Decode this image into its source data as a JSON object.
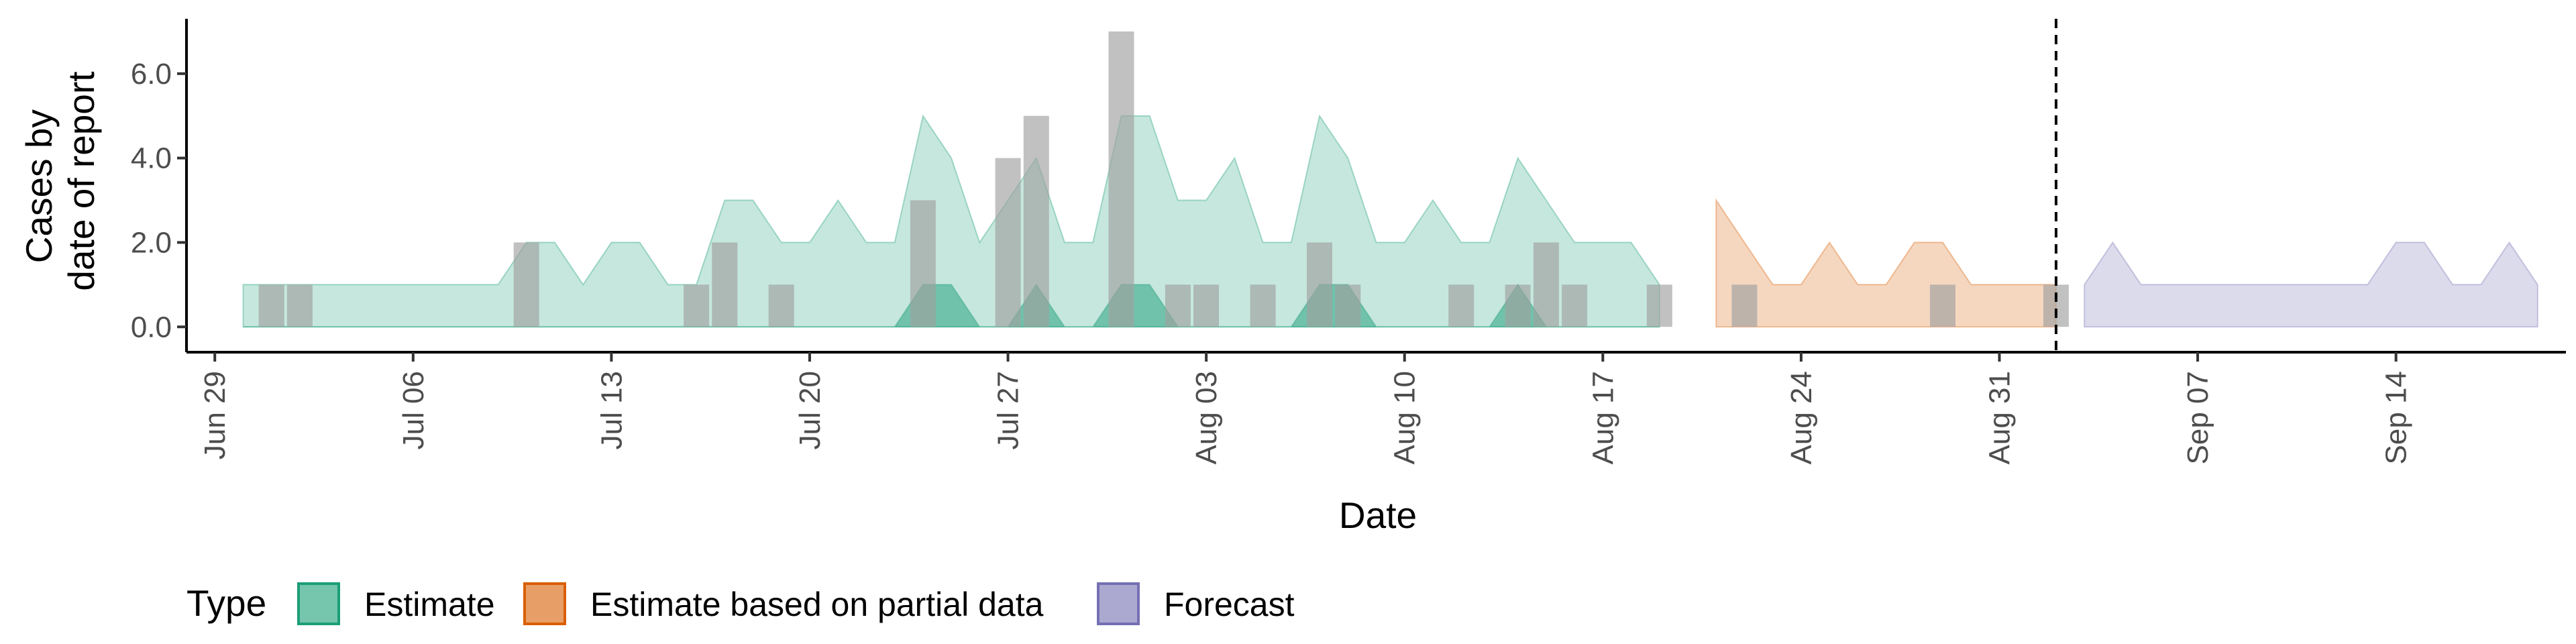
{
  "chart_data": {
    "type": "area",
    "xlabel": "Date",
    "ylabel_lines": [
      "Cases by",
      "date of report"
    ],
    "x_ticks": [
      "2020-06-29",
      "2020-07-06",
      "2020-07-13",
      "2020-07-20",
      "2020-07-27",
      "2020-08-03",
      "2020-08-10",
      "2020-08-17",
      "2020-08-24",
      "2020-08-31",
      "2020-09-07",
      "2020-09-14"
    ],
    "x_tick_labels": [
      "Jun 29",
      "Jul 06",
      "Jul 13",
      "Jul 20",
      "Jul 27",
      "Aug 03",
      "Aug 10",
      "Aug 17",
      "Aug 24",
      "Aug 31",
      "Sep 07",
      "Sep 14"
    ],
    "y_ticks": [
      0,
      2,
      4,
      6
    ],
    "y_tick_labels": [
      "0.0",
      "2.0",
      "4.0",
      "6.0"
    ],
    "xlim": [
      "2020-06-28",
      "2020-09-20"
    ],
    "ylim": [
      -0.6,
      7.3
    ],
    "vline_date": "2020-09-02",
    "legend": {
      "title": "Type",
      "position": "bottom",
      "items": [
        {
          "label": "Estimate",
          "fill": "#1b9e77",
          "stroke": "#1b9e77"
        },
        {
          "label": "Estimate based on partial data",
          "fill": "#d95f02",
          "stroke": "#d95f02"
        },
        {
          "label": "Forecast",
          "fill": "#7570b3",
          "stroke": "#7570b3"
        }
      ]
    },
    "bars": {
      "color": "#a0a0a0",
      "dates": [
        "2020-07-01",
        "2020-07-02",
        "2020-07-10",
        "2020-07-16",
        "2020-07-17",
        "2020-07-19",
        "2020-07-24",
        "2020-07-27",
        "2020-07-28",
        "2020-07-31",
        "2020-08-02",
        "2020-08-03",
        "2020-08-05",
        "2020-08-07",
        "2020-08-08",
        "2020-08-12",
        "2020-08-14",
        "2020-08-15",
        "2020-08-16",
        "2020-08-19",
        "2020-08-22",
        "2020-08-29",
        "2020-09-02"
      ],
      "values": [
        1,
        1,
        2,
        1,
        2,
        1,
        3,
        4,
        5,
        7,
        1,
        1,
        1,
        2,
        1,
        1,
        1,
        2,
        1,
        1,
        1,
        1,
        1
      ]
    },
    "series": [
      {
        "name": "Estimate",
        "color": "#1b9e77",
        "outer_upper": [
          1,
          1,
          1,
          1,
          1,
          1,
          1,
          1,
          1,
          1,
          2,
          2,
          1,
          2,
          2,
          1,
          1,
          3,
          3,
          2,
          2,
          3,
          2,
          2,
          5,
          4,
          2,
          3,
          4,
          2,
          2,
          5,
          5,
          3,
          3,
          4,
          2,
          2,
          5,
          4,
          2,
          2,
          3,
          2,
          2,
          4,
          3,
          2,
          2,
          2,
          1
        ],
        "inner_upper": [
          0,
          0,
          0,
          0,
          0,
          0,
          0,
          0,
          0,
          0,
          0,
          0,
          0,
          0,
          0,
          0,
          0,
          0,
          0,
          0,
          0,
          0,
          0,
          0,
          1,
          1,
          0,
          0,
          1,
          0,
          0,
          1,
          1,
          0,
          0,
          0,
          0,
          0,
          1,
          1,
          0,
          0,
          0,
          0,
          0,
          1,
          0,
          0,
          0,
          0,
          0
        ]
      },
      {
        "name": "Estimate based on partial data",
        "color": "#d95f02",
        "outer_upper": [
          3,
          2,
          1,
          1,
          2,
          1,
          1,
          2,
          2,
          1,
          1,
          1,
          1
        ]
      },
      {
        "name": "Forecast",
        "color": "#7570b3",
        "outer_upper": [
          1,
          2,
          1,
          1,
          1,
          1,
          1,
          1,
          1,
          1,
          1,
          2,
          2,
          1,
          1,
          2,
          1
        ]
      }
    ]
  }
}
